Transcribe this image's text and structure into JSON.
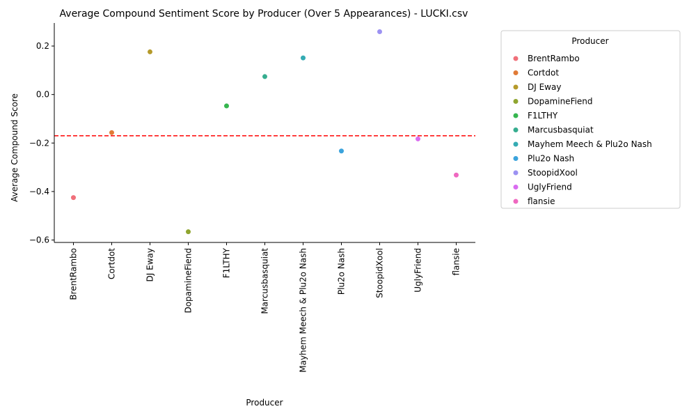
{
  "chart_data": {
    "type": "scatter",
    "title": "Average Compound Sentiment Score by Producer (Over 5 Appearances) - LUCKI.csv",
    "xlabel": "Producer",
    "ylabel": "Average Compound Score",
    "ylim": [
      -0.61,
      0.295
    ],
    "yticks": [
      -0.6,
      -0.4,
      -0.2,
      0.0,
      0.2
    ],
    "ytick_labels": [
      "−0.6",
      "−0.4",
      "−0.2",
      "0.0",
      "0.2"
    ],
    "reference_line": {
      "y": -0.17,
      "color": "#ff0000",
      "style": "dashed"
    },
    "legend": {
      "title": "Producer",
      "placement": "outside-right"
    },
    "grid": false,
    "points": [
      {
        "producer": "BrentRambo",
        "value": -0.425,
        "color": "#f0707a"
      },
      {
        "producer": "Cortdot",
        "value": -0.157,
        "color": "#e07b37"
      },
      {
        "producer": "DJ Eway",
        "value": 0.176,
        "color": "#b59a2b"
      },
      {
        "producer": "DopamineFiend",
        "value": -0.566,
        "color": "#8fa52f"
      },
      {
        "producer": "F1LTHY",
        "value": -0.047,
        "color": "#36b64f"
      },
      {
        "producer": "Marcusbasquiat",
        "value": 0.074,
        "color": "#36ad8f"
      },
      {
        "producer": "Mayhem Meech & Plu2o Nash",
        "value": 0.151,
        "color": "#34abb3"
      },
      {
        "producer": "Plu2o Nash",
        "value": -0.233,
        "color": "#3ba3dc"
      },
      {
        "producer": "StoopidXool",
        "value": 0.259,
        "color": "#9c92f2"
      },
      {
        "producer": "UglyFriend",
        "value": -0.183,
        "color": "#d96cf0"
      },
      {
        "producer": "flansie",
        "value": -0.332,
        "color": "#ef68c0"
      }
    ]
  }
}
